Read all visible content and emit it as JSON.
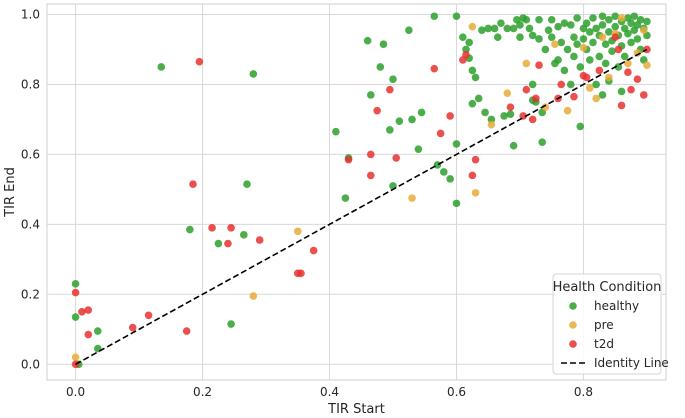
{
  "chart_data": {
    "type": "scatter",
    "title": "",
    "xlabel": "TIR Start",
    "ylabel": "TIR End",
    "xlim": [
      -0.045,
      0.93
    ],
    "ylim": [
      -0.045,
      1.03
    ],
    "xticks": [
      "0.0",
      "0.2",
      "0.4",
      "0.6",
      "0.8"
    ],
    "xtick_values": [
      0.0,
      0.2,
      0.4,
      0.6,
      0.8
    ],
    "yticks": [
      "0.0",
      "0.2",
      "0.4",
      "0.6",
      "0.8",
      "1.0"
    ],
    "ytick_values": [
      0.0,
      0.2,
      0.4,
      0.6,
      0.8,
      1.0
    ],
    "grid": true,
    "legend": {
      "title": "Health Condition",
      "placement": "bottom-right",
      "entries": [
        "healthy",
        "pre",
        "t2d",
        "Identity Line"
      ]
    },
    "identity_line": {
      "name": "Identity Line",
      "x": [
        0.0,
        0.9
      ],
      "y": [
        0.0,
        0.9
      ],
      "style": "dashed",
      "color": "#000000"
    },
    "series": [
      {
        "name": "healthy",
        "color": "#2ca02c",
        "points": [
          [
            0.0,
            0.23
          ],
          [
            0.0,
            0.135
          ],
          [
            0.035,
            0.095
          ],
          [
            0.035,
            0.045
          ],
          [
            0.005,
            0.0
          ],
          [
            0.135,
            0.85
          ],
          [
            0.18,
            0.385
          ],
          [
            0.225,
            0.345
          ],
          [
            0.245,
            0.115
          ],
          [
            0.265,
            0.37
          ],
          [
            0.27,
            0.515
          ],
          [
            0.28,
            0.83
          ],
          [
            0.41,
            0.665
          ],
          [
            0.425,
            0.475
          ],
          [
            0.43,
            0.59
          ],
          [
            0.46,
            0.925
          ],
          [
            0.465,
            0.77
          ],
          [
            0.48,
            0.85
          ],
          [
            0.485,
            0.915
          ],
          [
            0.495,
            0.67
          ],
          [
            0.5,
            0.815
          ],
          [
            0.5,
            0.51
          ],
          [
            0.51,
            0.695
          ],
          [
            0.525,
            0.955
          ],
          [
            0.53,
            0.7
          ],
          [
            0.54,
            0.615
          ],
          [
            0.545,
            0.72
          ],
          [
            0.565,
            0.995
          ],
          [
            0.57,
            0.57
          ],
          [
            0.58,
            0.55
          ],
          [
            0.59,
            0.53
          ],
          [
            0.6,
            0.995
          ],
          [
            0.6,
            0.63
          ],
          [
            0.6,
            0.46
          ],
          [
            0.61,
            0.935
          ],
          [
            0.615,
            0.9
          ],
          [
            0.62,
            0.92
          ],
          [
            0.62,
            0.875
          ],
          [
            0.625,
            0.84
          ],
          [
            0.625,
            0.745
          ],
          [
            0.63,
            0.82
          ],
          [
            0.635,
            0.76
          ],
          [
            0.64,
            0.955
          ],
          [
            0.645,
            0.72
          ],
          [
            0.65,
            0.96
          ],
          [
            0.655,
            0.7
          ],
          [
            0.66,
            0.96
          ],
          [
            0.665,
            0.935
          ],
          [
            0.67,
            0.975
          ],
          [
            0.675,
            0.71
          ],
          [
            0.68,
            0.96
          ],
          [
            0.685,
            0.715
          ],
          [
            0.69,
            0.625
          ],
          [
            0.69,
            0.96
          ],
          [
            0.695,
            0.985
          ],
          [
            0.7,
            0.97
          ],
          [
            0.7,
            0.935
          ],
          [
            0.705,
            0.99
          ],
          [
            0.71,
            0.985
          ],
          [
            0.715,
            0.96
          ],
          [
            0.72,
            0.94
          ],
          [
            0.72,
            0.755
          ],
          [
            0.725,
            0.75
          ],
          [
            0.73,
            0.985
          ],
          [
            0.73,
            0.93
          ],
          [
            0.735,
            0.635
          ],
          [
            0.735,
            0.72
          ],
          [
            0.74,
            0.9
          ],
          [
            0.745,
            0.955
          ],
          [
            0.75,
            0.985
          ],
          [
            0.75,
            0.935
          ],
          [
            0.755,
            0.86
          ],
          [
            0.76,
            0.87
          ],
          [
            0.76,
            0.965
          ],
          [
            0.765,
            0.92
          ],
          [
            0.77,
            0.975
          ],
          [
            0.77,
            0.84
          ],
          [
            0.775,
            0.9
          ],
          [
            0.78,
            0.97
          ],
          [
            0.78,
            0.8
          ],
          [
            0.785,
            0.935
          ],
          [
            0.785,
            0.88
          ],
          [
            0.79,
            0.99
          ],
          [
            0.79,
            0.915
          ],
          [
            0.795,
            0.85
          ],
          [
            0.795,
            0.68
          ],
          [
            0.8,
            0.96
          ],
          [
            0.8,
            0.93
          ],
          [
            0.805,
            0.975
          ],
          [
            0.805,
            0.9
          ],
          [
            0.81,
            0.87
          ],
          [
            0.81,
            0.95
          ],
          [
            0.815,
            0.99
          ],
          [
            0.815,
            0.92
          ],
          [
            0.82,
            0.8
          ],
          [
            0.82,
            0.96
          ],
          [
            0.825,
            0.94
          ],
          [
            0.825,
            0.88
          ],
          [
            0.83,
            0.995
          ],
          [
            0.83,
            0.97
          ],
          [
            0.835,
            0.915
          ],
          [
            0.835,
            0.86
          ],
          [
            0.84,
            0.985
          ],
          [
            0.84,
            0.95
          ],
          [
            0.845,
            0.925
          ],
          [
            0.845,
            0.895
          ],
          [
            0.85,
            0.995
          ],
          [
            0.85,
            0.965
          ],
          [
            0.855,
            0.94
          ],
          [
            0.855,
            0.85
          ],
          [
            0.86,
            0.98
          ],
          [
            0.86,
            0.91
          ],
          [
            0.865,
            0.96
          ],
          [
            0.865,
            0.88
          ],
          [
            0.87,
            0.99
          ],
          [
            0.87,
            0.945
          ],
          [
            0.875,
            0.975
          ],
          [
            0.875,
            0.92
          ],
          [
            0.88,
            0.955
          ],
          [
            0.88,
            0.995
          ],
          [
            0.885,
            0.97
          ],
          [
            0.885,
            0.93
          ],
          [
            0.89,
            0.985
          ],
          [
            0.89,
            0.9
          ],
          [
            0.895,
            0.96
          ],
          [
            0.895,
            0.87
          ],
          [
            0.9,
            0.98
          ],
          [
            0.9,
            0.94
          ],
          [
            0.86,
            0.78
          ],
          [
            0.84,
            0.81
          ],
          [
            0.83,
            0.77
          ],
          [
            0.72,
            0.8
          ]
        ]
      },
      {
        "name": "pre",
        "color": "#e6ac37",
        "points": [
          [
            0.0,
            0.02
          ],
          [
            0.28,
            0.195
          ],
          [
            0.35,
            0.38
          ],
          [
            0.53,
            0.475
          ],
          [
            0.625,
            0.965
          ],
          [
            0.63,
            0.49
          ],
          [
            0.655,
            0.685
          ],
          [
            0.68,
            0.775
          ],
          [
            0.71,
            0.86
          ],
          [
            0.74,
            0.735
          ],
          [
            0.755,
            0.915
          ],
          [
            0.775,
            0.725
          ],
          [
            0.8,
            0.905
          ],
          [
            0.81,
            0.79
          ],
          [
            0.82,
            0.76
          ],
          [
            0.83,
            0.935
          ],
          [
            0.84,
            0.82
          ],
          [
            0.85,
            0.945
          ],
          [
            0.86,
            0.99
          ],
          [
            0.87,
            0.86
          ],
          [
            0.885,
            0.89
          ],
          [
            0.895,
            0.955
          ],
          [
            0.9,
            0.855
          ]
        ]
      },
      {
        "name": "t2d",
        "color": "#e8312f",
        "points": [
          [
            0.0,
            0.205
          ],
          [
            0.0,
            0.0
          ],
          [
            0.01,
            0.15
          ],
          [
            0.02,
            0.155
          ],
          [
            0.02,
            0.085
          ],
          [
            0.09,
            0.105
          ],
          [
            0.115,
            0.14
          ],
          [
            0.175,
            0.095
          ],
          [
            0.185,
            0.515
          ],
          [
            0.195,
            0.865
          ],
          [
            0.215,
            0.39
          ],
          [
            0.24,
            0.345
          ],
          [
            0.245,
            0.39
          ],
          [
            0.29,
            0.355
          ],
          [
            0.35,
            0.26
          ],
          [
            0.355,
            0.26
          ],
          [
            0.375,
            0.325
          ],
          [
            0.43,
            0.585
          ],
          [
            0.465,
            0.6
          ],
          [
            0.465,
            0.54
          ],
          [
            0.475,
            0.725
          ],
          [
            0.495,
            0.785
          ],
          [
            0.505,
            0.59
          ],
          [
            0.565,
            0.845
          ],
          [
            0.575,
            0.66
          ],
          [
            0.59,
            0.71
          ],
          [
            0.61,
            0.87
          ],
          [
            0.615,
            0.885
          ],
          [
            0.625,
            0.54
          ],
          [
            0.63,
            0.585
          ],
          [
            0.685,
            0.735
          ],
          [
            0.705,
            0.71
          ],
          [
            0.71,
            0.785
          ],
          [
            0.72,
            0.7
          ],
          [
            0.725,
            0.76
          ],
          [
            0.73,
            0.855
          ],
          [
            0.76,
            0.76
          ],
          [
            0.765,
            0.8
          ],
          [
            0.785,
            0.765
          ],
          [
            0.8,
            0.825
          ],
          [
            0.805,
            0.82
          ],
          [
            0.825,
            0.84
          ],
          [
            0.85,
            0.935
          ],
          [
            0.855,
            0.9
          ],
          [
            0.86,
            0.74
          ],
          [
            0.87,
            0.835
          ],
          [
            0.875,
            0.785
          ],
          [
            0.885,
            0.815
          ],
          [
            0.895,
            0.77
          ],
          [
            0.9,
            0.9
          ]
        ]
      }
    ]
  }
}
